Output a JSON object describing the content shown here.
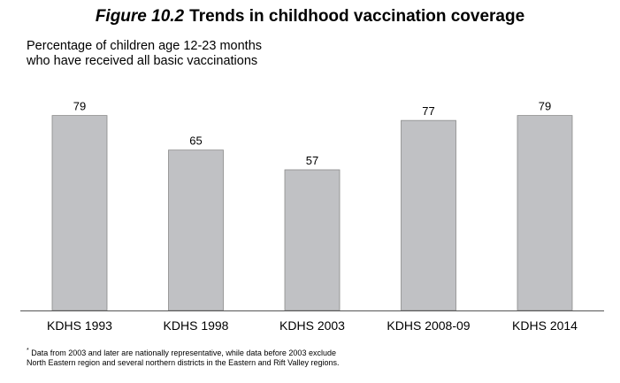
{
  "title": {
    "figure_label": "Figure 10.2",
    "text": "Trends in childhood vaccination coverage"
  },
  "footnote": "Data from 2003 and later are nationally representative, while data before 2003 exclude North Eastern region and several northern districts in the Eastern and Rift Valley regions.",
  "footnote_marker": "*",
  "chart_data": {
    "type": "bar",
    "title": "Trends in childhood vaccination coverage",
    "ylabel": "Percentage of children age 12-23 months who have received all basic vaccinations",
    "xlabel": "",
    "categories": [
      "KDHS 1993",
      "KDHS 1998",
      "KDHS 2003",
      "KDHS 2008-09",
      "KDHS 2014"
    ],
    "values": [
      79,
      65,
      57,
      77,
      79
    ],
    "data_labels": [
      "79",
      "65",
      "57",
      "77",
      "79"
    ],
    "ylim": [
      0,
      100
    ],
    "grid": false,
    "bar_color": "#c0c1c4",
    "bar_edge_color": "#8a8a8a",
    "axis_color": "#555555"
  }
}
